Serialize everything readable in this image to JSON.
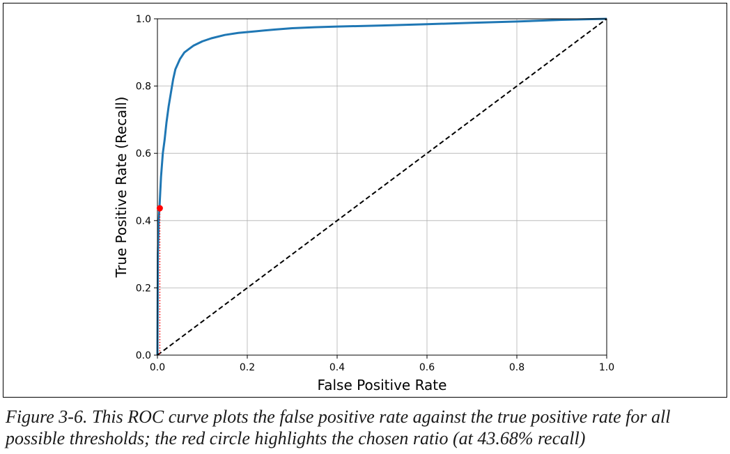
{
  "chart_data": {
    "type": "line",
    "title": "",
    "xlabel": "False Positive Rate",
    "ylabel": "True Positive Rate (Recall)",
    "xlim": [
      0.0,
      1.0
    ],
    "ylim": [
      0.0,
      1.0
    ],
    "grid": true,
    "x_ticks": [
      "0.0",
      "0.2",
      "0.4",
      "0.6",
      "0.8",
      "1.0"
    ],
    "y_ticks": [
      "0.0",
      "0.2",
      "0.4",
      "0.6",
      "0.8",
      "1.0"
    ],
    "series": [
      {
        "color": "#1f77b4",
        "style": "solid",
        "x": [
          0.0,
          0.001,
          0.003,
          0.005,
          0.008,
          0.012,
          0.016,
          0.02,
          0.025,
          0.03,
          0.035,
          0.04,
          0.05,
          0.06,
          0.07,
          0.08,
          0.1,
          0.12,
          0.15,
          0.18,
          0.22,
          0.26,
          0.3,
          0.35,
          0.4,
          0.5,
          0.6,
          0.7,
          0.8,
          0.9,
          1.0
        ],
        "y": [
          0.0,
          0.3,
          0.4,
          0.45,
          0.53,
          0.6,
          0.64,
          0.69,
          0.74,
          0.78,
          0.82,
          0.85,
          0.88,
          0.9,
          0.91,
          0.92,
          0.933,
          0.942,
          0.952,
          0.958,
          0.963,
          0.968,
          0.972,
          0.975,
          0.977,
          0.98,
          0.984,
          0.988,
          0.992,
          0.997,
          1.0
        ]
      },
      {
        "color": "#000000",
        "style": "dashed",
        "x": [
          0.0,
          1.0
        ],
        "y": [
          0.0,
          1.0
        ]
      }
    ],
    "highlight_point": {
      "x": 0.0053,
      "y": 0.4368,
      "color": "#ff0000"
    }
  },
  "caption": "Figure 3-6. This ROC curve plots the false positive rate against the true positive rate for all possible thresholds; the red circle highlights the chosen ratio (at 43.68% recall)"
}
